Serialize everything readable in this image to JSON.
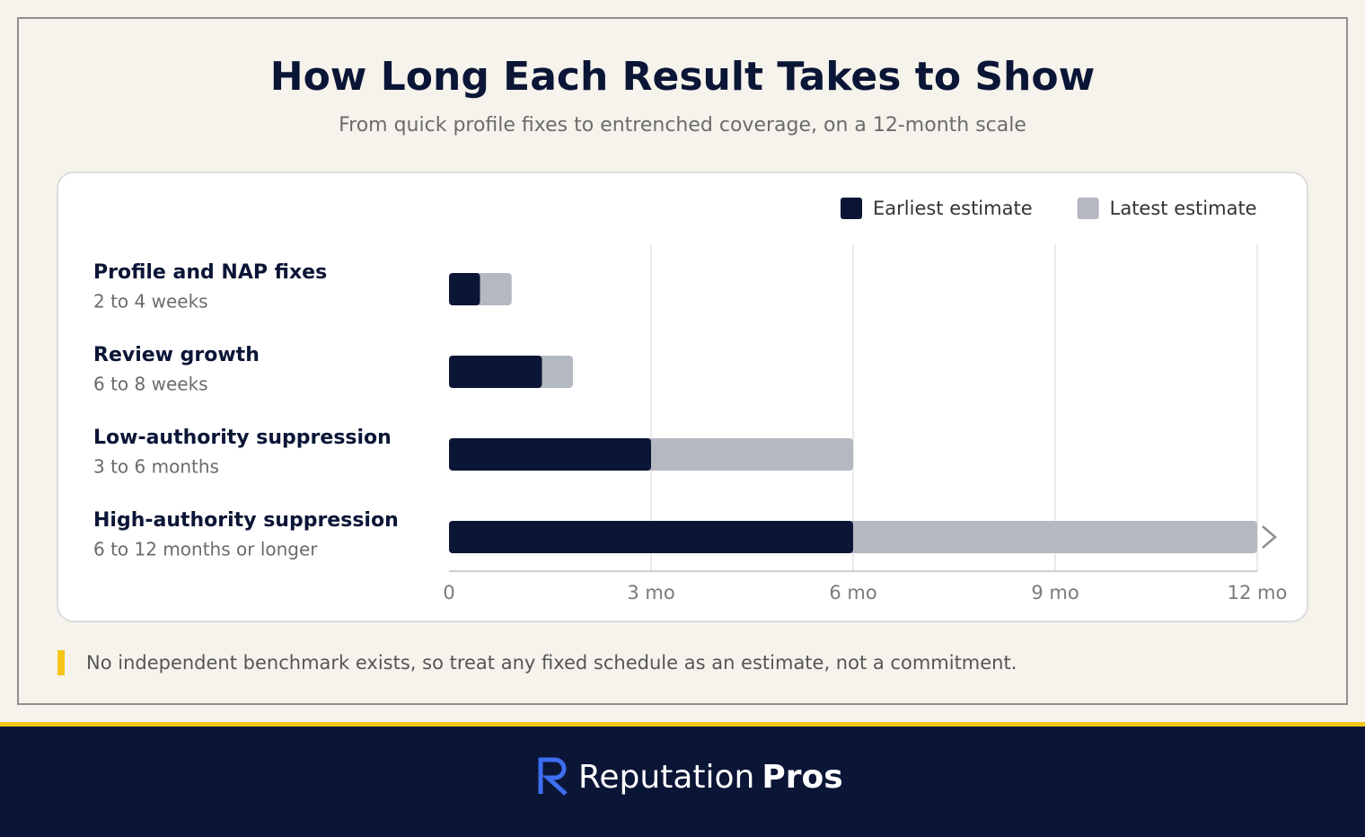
{
  "chart_data": {
    "type": "range-bar",
    "title": "How Long Each Result Takes to Show",
    "subtitle": "From quick profile fixes to entrenched coverage, on a 12-month scale",
    "categories": [
      "Profile and NAP fixes",
      "Review growth",
      "Low-authority suppression",
      "High-authority suppression"
    ],
    "descriptions": [
      "2 to 4 weeks",
      "6 to 8 weeks",
      "3 to 6 months",
      "6 to 12 months or longer"
    ],
    "series": [
      {
        "name": "Earliest estimate",
        "color": "#0b1536",
        "values": [
          0.46,
          1.38,
          3,
          6
        ]
      },
      {
        "name": "Latest estimate",
        "color": "#b4b8c1",
        "values": [
          0.93,
          1.84,
          6,
          12
        ]
      }
    ],
    "xlim": [
      0,
      12
    ],
    "xticks": [
      0,
      {
        "value": 3,
        "label": "3 mo"
      },
      {
        "value": 6,
        "label": "6 mo"
      },
      {
        "value": 9,
        "label": "9 mo"
      },
      {
        "value": 12,
        "label": "12 mo"
      }
    ],
    "grid": true,
    "legend": "top-right",
    "note": "No independent benchmark exists, so treat any fixed schedule as an estimate, not a commitment."
  },
  "brand": {
    "name": "Reputation",
    "emphasis": "Pros"
  }
}
